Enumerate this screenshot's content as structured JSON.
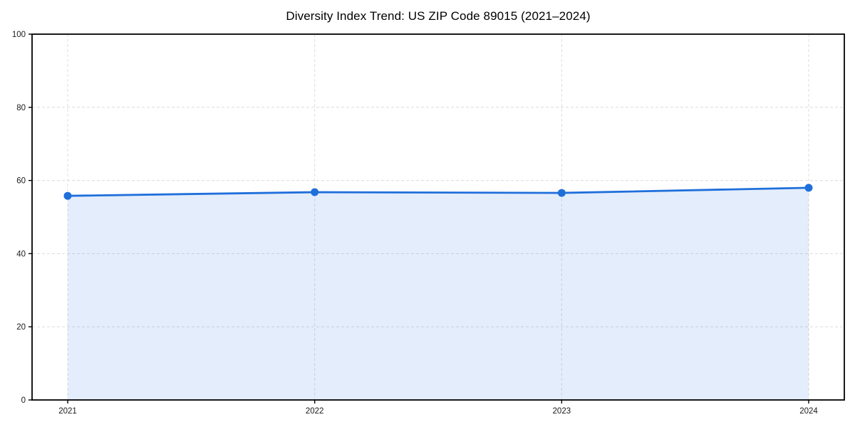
{
  "chart_data": {
    "type": "area",
    "title": "Diversity Index Trend: US ZIP Code 89015 (2021–2024)",
    "x": [
      2021,
      2022,
      2023,
      2024
    ],
    "xtick_labels": [
      "2021",
      "2022",
      "2023",
      "2024"
    ],
    "series": [
      {
        "name": "Diversity Index",
        "values": [
          55.8,
          56.8,
          56.6,
          58.0
        ]
      }
    ],
    "xlabel": "",
    "ylabel": "",
    "ylim": [
      0,
      100
    ],
    "yticks": [
      0,
      20,
      40,
      60,
      80,
      100
    ],
    "grid": true,
    "grid_style": "dashed",
    "legend_position": "none",
    "colors": {
      "line": "#1f6fdb",
      "marker": "#1f6fdb",
      "fill": "rgba(31, 111, 219, 0.12)",
      "grid": "#dcdcdc",
      "axis_frame": "#000000",
      "tick_label": "#1a1a1a",
      "title": "#000000",
      "background": "#ffffff"
    }
  }
}
